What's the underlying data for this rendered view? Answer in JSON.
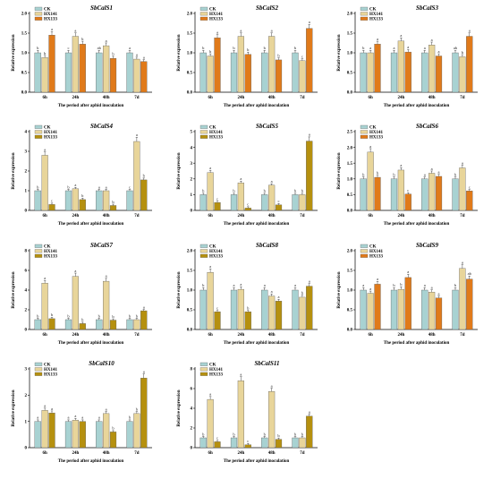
{
  "legend": [
    {
      "name": "CK",
      "color": "#a8d2d2"
    },
    {
      "name": "HX141",
      "color": "#e8d59a"
    },
    {
      "name": "HX133",
      "color": "#b5900f"
    }
  ],
  "chart_data": [
    {
      "type": "bar",
      "title": "SbCalS1",
      "xlabel": "The period after aphid inoculation",
      "ylabel": "Relative expression",
      "categories": [
        "6h",
        "24h",
        "48h",
        "7d"
      ],
      "ylim": [
        0,
        2.0
      ],
      "yticks": [
        "0.0",
        "0.5",
        "1.0",
        "1.5",
        "2.0"
      ],
      "colors": [
        "#a8d2d2",
        "#e8d59a",
        "#e07a1a"
      ],
      "series": [
        {
          "name": "CK",
          "values": [
            1.0,
            1.0,
            1.0,
            1.0
          ],
          "letters": [
            "b",
            "c",
            "ab",
            "a"
          ]
        },
        {
          "name": "HX141",
          "values": [
            0.88,
            1.42,
            1.18,
            0.84
          ],
          "letters": [
            "b",
            "a",
            "a",
            "a"
          ]
        },
        {
          "name": "HX133",
          "values": [
            1.45,
            1.22,
            0.86,
            0.78
          ],
          "letters": [
            "a",
            "b",
            "b",
            "a"
          ]
        }
      ]
    },
    {
      "type": "bar",
      "title": "SbCalS2",
      "xlabel": "The period after aphid inoculation",
      "ylabel": "Relative expression",
      "categories": [
        "6h",
        "24h",
        "48h",
        "7d"
      ],
      "ylim": [
        0,
        2.0
      ],
      "yticks": [
        "0.0",
        "0.5",
        "1.0",
        "1.5",
        "2.0"
      ],
      "colors": [
        "#a8d2d2",
        "#e8d59a",
        "#e07a1a"
      ],
      "series": [
        {
          "name": "CK",
          "values": [
            1.0,
            1.0,
            1.0,
            1.0
          ],
          "letters": [
            "b",
            "b",
            "b",
            "b"
          ]
        },
        {
          "name": "HX141",
          "values": [
            0.92,
            1.42,
            1.42,
            0.8
          ],
          "letters": [
            "b",
            "a",
            "a",
            "c"
          ]
        },
        {
          "name": "HX133",
          "values": [
            1.38,
            0.96,
            0.82,
            1.62
          ],
          "letters": [
            "a",
            "b",
            "b",
            "a"
          ]
        }
      ]
    },
    {
      "type": "bar",
      "title": "SbCalS3",
      "xlabel": "The period after aphid inoculation",
      "ylabel": "Relative expression",
      "categories": [
        "6h",
        "24h",
        "48h",
        "7d"
      ],
      "ylim": [
        0,
        2.0
      ],
      "yticks": [
        "0.0",
        "0.5",
        "1.0",
        "1.5",
        "2.0"
      ],
      "colors": [
        "#a8d2d2",
        "#e8d59a",
        "#e07a1a"
      ],
      "series": [
        {
          "name": "CK",
          "values": [
            1.0,
            1.0,
            1.0,
            1.0
          ],
          "letters": [
            "b",
            "a",
            "a",
            "ab"
          ]
        },
        {
          "name": "HX141",
          "values": [
            1.0,
            1.3,
            1.2,
            0.9
          ],
          "letters": [
            "a",
            "a",
            "a",
            "b"
          ]
        },
        {
          "name": "HX133",
          "values": [
            1.22,
            1.02,
            0.92,
            1.42
          ],
          "letters": [
            "a",
            "a",
            "a",
            "a"
          ]
        }
      ]
    },
    {
      "type": "bar",
      "title": "SbCalS4",
      "xlabel": "The period after aphid inoculation",
      "ylabel": "Relative expression",
      "categories": [
        "6h",
        "24h",
        "48h",
        "7d"
      ],
      "ylim": [
        0,
        4
      ],
      "yticks": [
        "0",
        "1",
        "2",
        "3",
        "4"
      ],
      "colors": [
        "#a8d2d2",
        "#e8d59a",
        "#b5900f"
      ],
      "series": [
        {
          "name": "CK",
          "values": [
            1.0,
            1.0,
            1.0,
            1.0
          ],
          "letters": [
            "b",
            "b",
            "a",
            "c"
          ]
        },
        {
          "name": "HX141",
          "values": [
            2.8,
            1.1,
            1.0,
            3.5
          ],
          "letters": [
            "a",
            "a",
            "a",
            "a"
          ]
        },
        {
          "name": "HX133",
          "values": [
            0.3,
            0.55,
            0.25,
            1.55
          ],
          "letters": [
            "c",
            "b",
            "b",
            "b"
          ]
        }
      ]
    },
    {
      "type": "bar",
      "title": "SbCalS5",
      "xlabel": "The period after aphid inoculation",
      "ylabel": "Relative expression",
      "categories": [
        "6h",
        "24h",
        "48h",
        "7d"
      ],
      "ylim": [
        0,
        5
      ],
      "yticks": [
        "0",
        "1",
        "2",
        "3",
        "4",
        "5"
      ],
      "colors": [
        "#a8d2d2",
        "#e8d59a",
        "#b5900f"
      ],
      "series": [
        {
          "name": "CK",
          "values": [
            1.0,
            1.0,
            1.0,
            1.0
          ],
          "letters": [
            "b",
            "b",
            "b",
            "b"
          ]
        },
        {
          "name": "HX141",
          "values": [
            2.4,
            1.75,
            1.6,
            1.0
          ],
          "letters": [
            "a",
            "a",
            "a",
            "b"
          ]
        },
        {
          "name": "HX133",
          "values": [
            0.5,
            0.15,
            0.35,
            4.4
          ],
          "letters": [
            "c",
            "c",
            "c",
            "a"
          ]
        }
      ]
    },
    {
      "type": "bar",
      "title": "SbCalS6",
      "xlabel": "The period after aphid inoculation",
      "ylabel": "Relative expression",
      "categories": [
        "6h",
        "24h",
        "48h",
        "7d"
      ],
      "ylim": [
        0,
        2.5
      ],
      "yticks": [
        "0.0",
        "0.5",
        "1.0",
        "1.5",
        "2.0",
        "2.5"
      ],
      "colors": [
        "#a8d2d2",
        "#e8d59a",
        "#e07a1a"
      ],
      "series": [
        {
          "name": "CK",
          "values": [
            1.0,
            1.0,
            1.0,
            1.0
          ],
          "letters": [
            "b",
            "b",
            "a",
            "b"
          ]
        },
        {
          "name": "HX141",
          "values": [
            1.85,
            1.28,
            1.18,
            1.35
          ],
          "letters": [
            "a",
            "a",
            "a",
            "a"
          ]
        },
        {
          "name": "HX133",
          "values": [
            1.05,
            0.52,
            1.08,
            0.62
          ],
          "letters": [
            "b",
            "c",
            "a",
            "c"
          ]
        }
      ]
    },
    {
      "type": "bar",
      "title": "SbCalS7",
      "xlabel": "The period after aphid inoculation",
      "ylabel": "Relative expression",
      "categories": [
        "6h",
        "24h",
        "48h",
        "7d"
      ],
      "ylim": [
        0,
        8
      ],
      "yticks": [
        "0",
        "2",
        "4",
        "6",
        "8"
      ],
      "colors": [
        "#a8d2d2",
        "#e8d59a",
        "#b5900f"
      ],
      "series": [
        {
          "name": "CK",
          "values": [
            1.0,
            1.0,
            1.0,
            1.0
          ],
          "letters": [
            "b",
            "b",
            "b",
            "b"
          ]
        },
        {
          "name": "HX141",
          "values": [
            4.7,
            5.4,
            4.9,
            1.0
          ],
          "letters": [
            "a",
            "a",
            "a",
            "b"
          ]
        },
        {
          "name": "HX133",
          "values": [
            1.1,
            0.6,
            0.95,
            1.9
          ],
          "letters": [
            "b",
            "b",
            "b",
            "a"
          ]
        }
      ]
    },
    {
      "type": "bar",
      "title": "SbCalS8",
      "xlabel": "The period after aphid inoculation",
      "ylabel": "Relative expression",
      "categories": [
        "6h",
        "24h",
        "48h",
        "7d"
      ],
      "ylim": [
        0,
        2.0
      ],
      "yticks": [
        "0.0",
        "0.5",
        "1.0",
        "1.5",
        "2.0"
      ],
      "colors": [
        "#a8d2d2",
        "#e8d59a",
        "#b5900f"
      ],
      "series": [
        {
          "name": "CK",
          "values": [
            1.0,
            1.0,
            1.0,
            1.0
          ],
          "letters": [
            "b",
            "a",
            "a",
            "a"
          ]
        },
        {
          "name": "HX141",
          "values": [
            1.45,
            1.02,
            0.85,
            0.82
          ],
          "letters": [
            "a",
            "a",
            "a",
            "b"
          ]
        },
        {
          "name": "HX133",
          "values": [
            0.45,
            0.45,
            0.72,
            1.1
          ],
          "letters": [
            "c",
            "b",
            "a",
            "a"
          ]
        }
      ]
    },
    {
      "type": "bar",
      "title": "SbCalS9",
      "xlabel": "The period after aphid inoculation",
      "ylabel": "Relative expression",
      "categories": [
        "6h",
        "24h",
        "48h",
        "7d"
      ],
      "ylim": [
        0,
        2.0
      ],
      "yticks": [
        "0.0",
        "0.5",
        "1.0",
        "1.5",
        "2.0"
      ],
      "colors": [
        "#a8d2d2",
        "#e8d59a",
        "#e07a1a"
      ],
      "series": [
        {
          "name": "CK",
          "values": [
            1.0,
            1.0,
            1.0,
            1.0
          ],
          "letters": [
            "a",
            "b",
            "a",
            "b"
          ]
        },
        {
          "name": "HX141",
          "values": [
            0.92,
            1.02,
            0.95,
            1.55
          ],
          "letters": [
            "a",
            "b",
            "a",
            "a"
          ]
        },
        {
          "name": "HX133",
          "values": [
            1.15,
            1.32,
            0.8,
            1.28
          ],
          "letters": [
            "a",
            "a",
            "a",
            "ab"
          ]
        }
      ]
    },
    {
      "type": "bar",
      "title": "SbCalS10",
      "xlabel": "The period after aphid inoculation",
      "ylabel": "Relative expression",
      "categories": [
        "6h",
        "24h",
        "48h",
        "7d"
      ],
      "ylim": [
        0,
        3
      ],
      "yticks": [
        "0",
        "1",
        "2",
        "3"
      ],
      "colors": [
        "#a8d2d2",
        "#e8d59a",
        "#b5900f"
      ],
      "series": [
        {
          "name": "CK",
          "values": [
            1.0,
            1.0,
            1.0,
            1.0
          ],
          "letters": [
            "a",
            "a",
            "a",
            "b"
          ]
        },
        {
          "name": "HX141",
          "values": [
            1.42,
            1.05,
            1.3,
            1.3
          ],
          "letters": [
            "a",
            "a",
            "a",
            "b"
          ]
        },
        {
          "name": "HX133",
          "values": [
            1.32,
            1.0,
            0.6,
            2.65
          ],
          "letters": [
            "a",
            "a",
            "b",
            "a"
          ]
        }
      ]
    },
    {
      "type": "bar",
      "title": "SbCalS11",
      "xlabel": "The period after aphid inoculation",
      "ylabel": "Relative expression",
      "categories": [
        "6h",
        "24h",
        "48h",
        "7d"
      ],
      "ylim": [
        0,
        8
      ],
      "yticks": [
        "0",
        "2",
        "4",
        "6",
        "8"
      ],
      "colors": [
        "#a8d2d2",
        "#e8d59a",
        "#b5900f"
      ],
      "series": [
        {
          "name": "CK",
          "values": [
            1.0,
            1.0,
            1.0,
            1.0
          ],
          "letters": [
            "b",
            "b",
            "b",
            "b"
          ]
        },
        {
          "name": "HX141",
          "values": [
            4.9,
            6.8,
            5.7,
            1.0
          ],
          "letters": [
            "a",
            "a",
            "a",
            "b"
          ]
        },
        {
          "name": "HX133",
          "values": [
            0.6,
            0.3,
            0.85,
            3.2
          ],
          "letters": [
            "c",
            "c",
            "b",
            "a"
          ]
        }
      ]
    }
  ]
}
